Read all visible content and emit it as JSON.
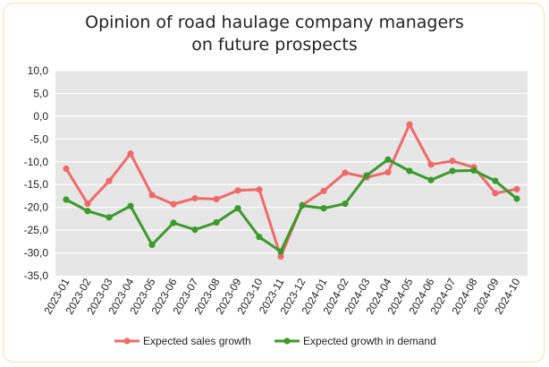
{
  "colors": {
    "plot_bg": "#e6e6e6",
    "sales": "#f06a6a",
    "demand": "#3c9a2c",
    "border": "#f0e3a6",
    "grid": "#ffffff"
  },
  "chart_data": {
    "type": "line",
    "title_line1": "Opinion of road haulage company managers",
    "title_line2": "on future prospects",
    "xlabel": "",
    "ylabel": "",
    "ylim": [
      -35,
      10
    ],
    "yticks": [
      10,
      5,
      0,
      -5,
      -10,
      -15,
      -20,
      -25,
      -30,
      -35
    ],
    "ytick_labels": [
      "10,0",
      "5,0",
      "0,0",
      "-5,0",
      "-10,0",
      "-15,0",
      "-20,0",
      "-25,0",
      "-30,0",
      "-35,0"
    ],
    "grid": true,
    "legend_position": "bottom",
    "categories": [
      "2023-01",
      "2023-02",
      "2023-03",
      "2023-04",
      "2023-05",
      "2023-06",
      "2023-07",
      "2023-08",
      "2023-09",
      "2023-10",
      "2023-11",
      "2023-12",
      "2024-01",
      "2024-02",
      "2024-03",
      "2024-04",
      "2024-05",
      "2024-06",
      "2024-07",
      "2024-08",
      "2024-09",
      "2024-10"
    ],
    "series": [
      {
        "name": "Expected sales growth",
        "color": "#f06a6a",
        "values": [
          -11.5,
          -19.2,
          -14.2,
          -8.2,
          -17.3,
          -19.3,
          -18.0,
          -18.2,
          -16.3,
          -16.1,
          -30.8,
          -19.5,
          -16.4,
          -12.4,
          -13.4,
          -12.3,
          -1.8,
          -10.6,
          -9.8,
          -11.2,
          -16.9,
          -16.0
        ]
      },
      {
        "name": "Expected growth in demand",
        "color": "#3c9a2c",
        "values": [
          -18.3,
          -20.8,
          -22.2,
          -19.7,
          -28.2,
          -23.4,
          -24.9,
          -23.3,
          -20.2,
          -26.5,
          -29.7,
          -19.6,
          -20.2,
          -19.2,
          -13.0,
          -9.5,
          -12.0,
          -14.0,
          -12.0,
          -11.9,
          -14.2,
          -18.1
        ]
      }
    ]
  }
}
